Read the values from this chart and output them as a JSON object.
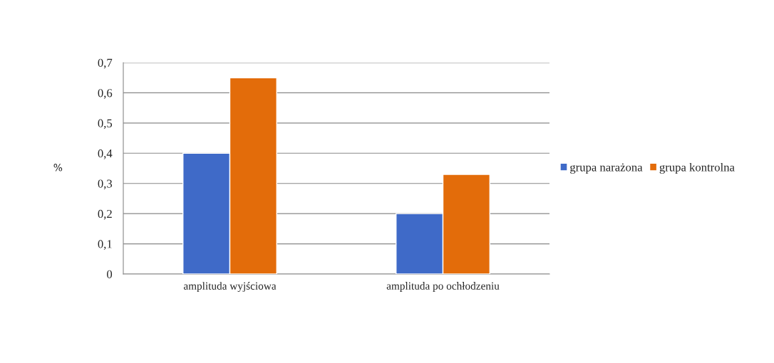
{
  "chart_data": {
    "type": "bar",
    "ylabel": "%",
    "categories": [
      "amplituda wyjściowa",
      "amplituda po ochłodzeniu"
    ],
    "series": [
      {
        "name": "grupa narażona",
        "color": "#3f6ac8",
        "values": [
          0.4,
          0.2
        ]
      },
      {
        "name": "grupa kontrolna",
        "color": "#e36c0a",
        "values": [
          0.65,
          0.33
        ]
      }
    ],
    "ylim": [
      0,
      0.7
    ],
    "yticks": [
      {
        "value": 0,
        "label": "0"
      },
      {
        "value": 0.1,
        "label": "0,1"
      },
      {
        "value": 0.2,
        "label": "0,2"
      },
      {
        "value": 0.3,
        "label": "0,3"
      },
      {
        "value": 0.4,
        "label": "0,4"
      },
      {
        "value": 0.5,
        "label": "0,5"
      },
      {
        "value": 0.6,
        "label": "0,6"
      },
      {
        "value": 0.7,
        "label": "0,7"
      }
    ],
    "grid": "y",
    "legend": "right"
  }
}
